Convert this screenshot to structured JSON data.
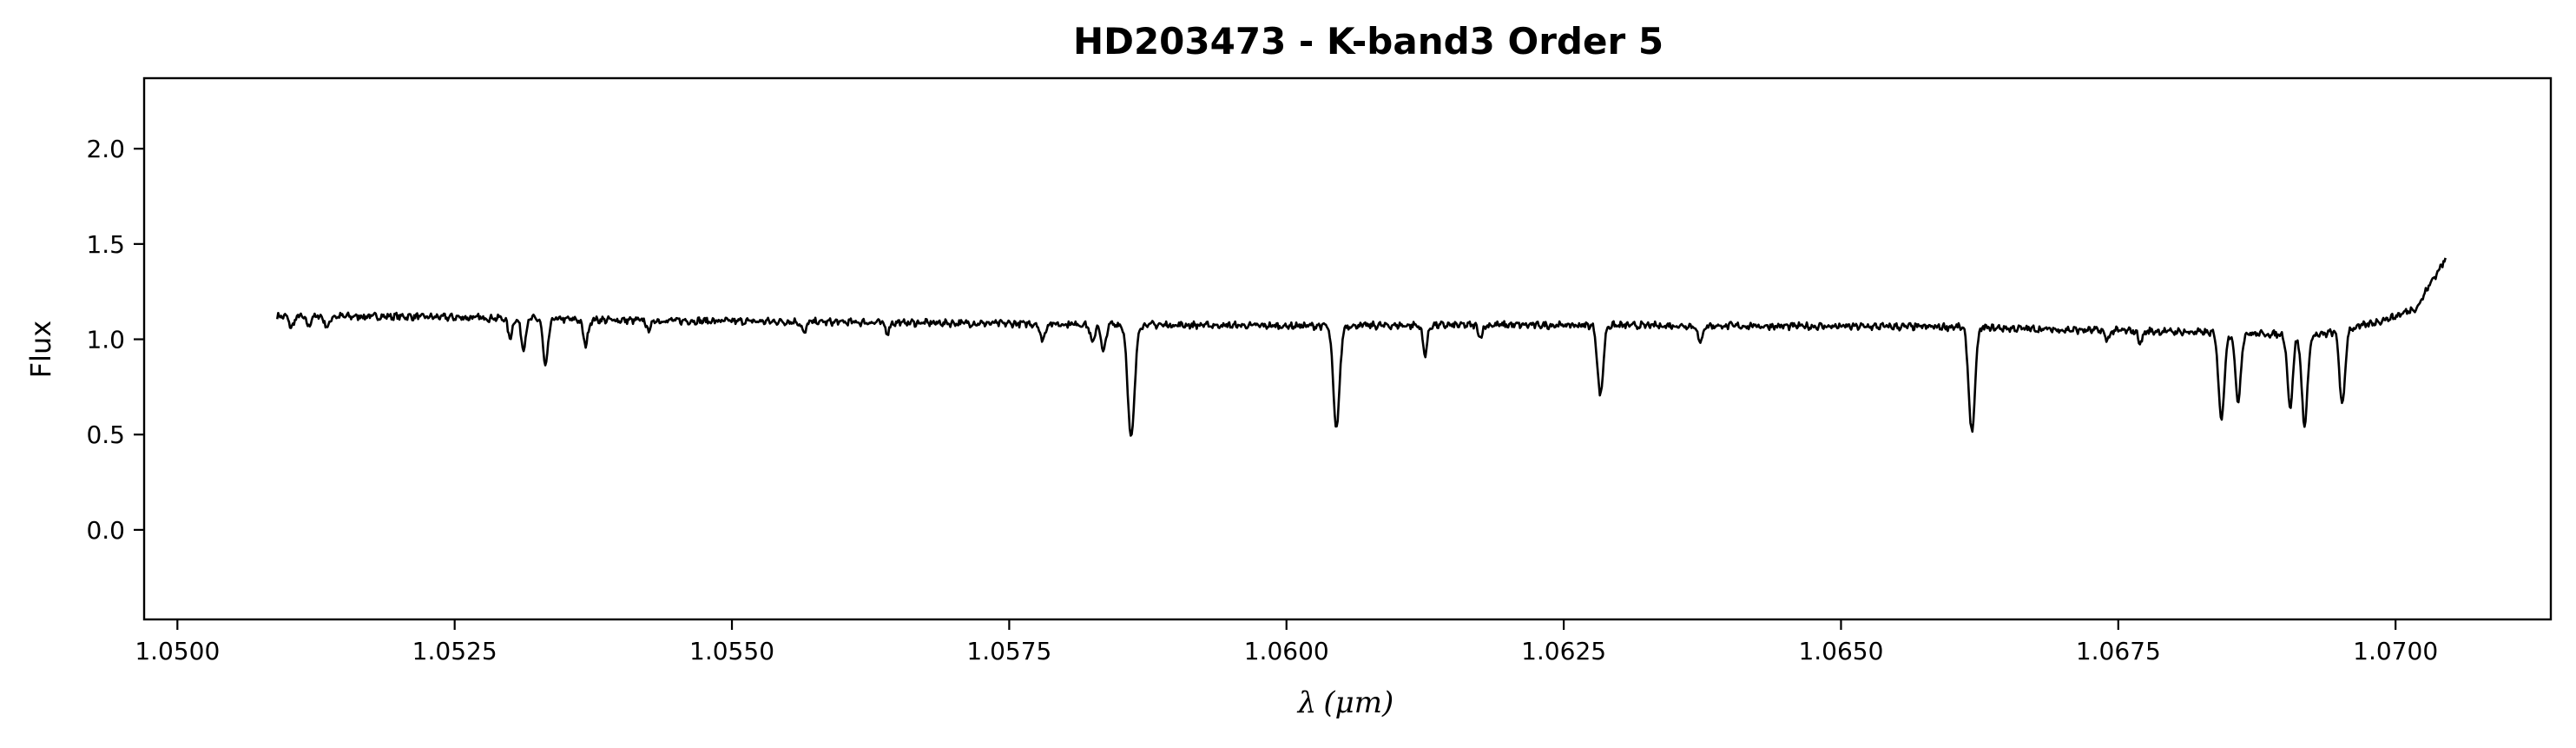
{
  "chart_data": {
    "type": "line",
    "title": "HD203473 - K-band3 Order 5",
    "xlabel_symbol": "λ",
    "xlabel_unit": "(μm)",
    "ylabel": "Flux",
    "xlim": [
      1.0497,
      1.0714
    ],
    "ylim": [
      -0.47,
      2.37
    ],
    "x_ticks": [
      1.05,
      1.0525,
      1.055,
      1.0575,
      1.06,
      1.0625,
      1.065,
      1.0675,
      1.07
    ],
    "x_tick_labels": [
      "1.0500",
      "1.0525",
      "1.0550",
      "1.0575",
      "1.0600",
      "1.0625",
      "1.0650",
      "1.0675",
      "1.0700"
    ],
    "y_ticks": [
      0.0,
      0.5,
      1.0,
      1.5,
      2.0
    ],
    "y_tick_labels": [
      "0.0",
      "0.5",
      "1.0",
      "1.5",
      "2.0"
    ],
    "grid": false,
    "line_color": "#000000",
    "series": [
      {
        "x_start": 1.0509,
        "x_end": 1.07045,
        "continuum_points": [
          [
            1.0509,
            1.12
          ],
          [
            1.052,
            1.12
          ],
          [
            1.053,
            1.11
          ],
          [
            1.054,
            1.1
          ],
          [
            1.056,
            1.09
          ],
          [
            1.058,
            1.08
          ],
          [
            1.06,
            1.07
          ],
          [
            1.062,
            1.075
          ],
          [
            1.064,
            1.07
          ],
          [
            1.066,
            1.065
          ],
          [
            1.067,
            1.05
          ],
          [
            1.068,
            1.04
          ],
          [
            1.0693,
            1.02
          ],
          [
            1.0697,
            1.07
          ],
          [
            1.07,
            1.12
          ],
          [
            1.0702,
            1.17
          ],
          [
            1.0703,
            1.28
          ],
          [
            1.07045,
            1.42
          ]
        ],
        "absorption_lines": [
          [
            1.05103,
            0.06,
            2e-05
          ],
          [
            1.05118,
            0.05,
            2e-05
          ],
          [
            1.05135,
            0.06,
            2e-05
          ],
          [
            1.053,
            0.1,
            2e-05
          ],
          [
            1.05312,
            0.15,
            2.2e-05
          ],
          [
            1.05332,
            0.25,
            2.2e-05
          ],
          [
            1.05368,
            0.13,
            2.2e-05
          ],
          [
            1.05425,
            0.05,
            2e-05
          ],
          [
            1.05565,
            0.06,
            2e-05
          ],
          [
            1.0564,
            0.05,
            2e-05
          ],
          [
            1.0578,
            0.09,
            2e-05
          ],
          [
            1.05825,
            0.1,
            2e-05
          ],
          [
            1.05835,
            0.15,
            2e-05
          ],
          [
            1.0586,
            0.6,
            3e-05
          ],
          [
            1.06045,
            0.54,
            2.8e-05
          ],
          [
            1.06125,
            0.15,
            2e-05
          ],
          [
            1.06175,
            0.06,
            2e-05
          ],
          [
            1.06283,
            0.37,
            2.5e-05
          ],
          [
            1.06373,
            0.09,
            2e-05
          ],
          [
            1.06618,
            0.55,
            2.8e-05
          ],
          [
            1.0674,
            0.05,
            2e-05
          ],
          [
            1.0677,
            0.06,
            2e-05
          ],
          [
            1.06843,
            0.45,
            2.6e-05
          ],
          [
            1.06858,
            0.36,
            2.4e-05
          ],
          [
            1.06905,
            0.38,
            2.4e-05
          ],
          [
            1.06918,
            0.47,
            2.6e-05
          ],
          [
            1.06952,
            0.4,
            2.4e-05
          ]
        ]
      }
    ]
  }
}
